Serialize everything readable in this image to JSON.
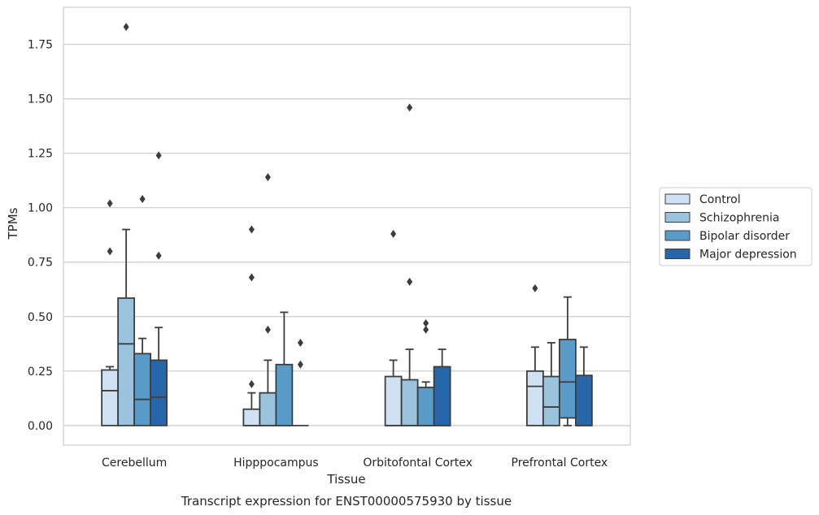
{
  "chart_data": {
    "type": "box",
    "title": "Transcript expression for ENST00000575930 by tissue",
    "xlabel": "Tissue",
    "ylabel": "TPMs",
    "ylim": [
      -0.09,
      1.92
    ],
    "yticks": [
      "0.00",
      "0.25",
      "0.50",
      "0.75",
      "1.00",
      "1.25",
      "1.50",
      "1.75"
    ],
    "grid": "horizontal",
    "legend_position": "right",
    "categories": [
      "Cerebellum",
      "Hipppocampus",
      "Orbitofontal Cortex",
      "Prefrontal Cortex"
    ],
    "series": [
      {
        "name": "Control",
        "color": "#cfe1f2",
        "boxes": [
          {
            "min": 0.0,
            "q1": 0.0,
            "median": 0.16,
            "q3": 0.255,
            "max": 0.27,
            "outliers": [
              0.8,
              1.02
            ]
          },
          {
            "min": 0.0,
            "q1": 0.0,
            "median": 0.0,
            "q3": 0.075,
            "max": 0.15,
            "outliers": [
              0.19,
              0.68,
              0.9
            ]
          },
          {
            "min": 0.0,
            "q1": 0.0,
            "median": 0.0,
            "q3": 0.225,
            "max": 0.3,
            "outliers": [
              0.88
            ]
          },
          {
            "min": 0.0,
            "q1": 0.0,
            "median": 0.18,
            "q3": 0.25,
            "max": 0.36,
            "outliers": [
              0.63
            ]
          }
        ]
      },
      {
        "name": "Schizophrenia",
        "color": "#9ac3dd",
        "boxes": [
          {
            "min": 0.0,
            "q1": 0.0,
            "median": 0.375,
            "q3": 0.585,
            "max": 0.9,
            "outliers": [
              1.83
            ]
          },
          {
            "min": 0.0,
            "q1": 0.0,
            "median": 0.0,
            "q3": 0.15,
            "max": 0.3,
            "outliers": [
              0.44,
              1.14
            ]
          },
          {
            "min": 0.0,
            "q1": 0.0,
            "median": 0.0,
            "q3": 0.21,
            "max": 0.35,
            "outliers": [
              0.66,
              1.46
            ]
          },
          {
            "min": 0.0,
            "q1": 0.0,
            "median": 0.085,
            "q3": 0.225,
            "max": 0.38,
            "outliers": []
          }
        ]
      },
      {
        "name": "Bipolar disorder",
        "color": "#5a9cc9",
        "boxes": [
          {
            "min": 0.0,
            "q1": 0.0,
            "median": 0.12,
            "q3": 0.33,
            "max": 0.4,
            "outliers": [
              1.04
            ]
          },
          {
            "min": 0.0,
            "q1": 0.0,
            "median": 0.0,
            "q3": 0.28,
            "max": 0.52,
            "outliers": []
          },
          {
            "min": 0.0,
            "q1": 0.0,
            "median": 0.0,
            "q3": 0.175,
            "max": 0.2,
            "outliers": [
              0.44,
              0.47
            ]
          },
          {
            "min": 0.0,
            "q1": 0.035,
            "median": 0.2,
            "q3": 0.395,
            "max": 0.59,
            "outliers": []
          }
        ]
      },
      {
        "name": "Major depression",
        "color": "#2767a9",
        "boxes": [
          {
            "min": 0.0,
            "q1": 0.0,
            "median": 0.13,
            "q3": 0.3,
            "max": 0.45,
            "outliers": [
              0.78,
              1.24
            ]
          },
          {
            "min": 0.0,
            "q1": 0.0,
            "median": 0.0,
            "q3": 0.0,
            "max": 0.0,
            "outliers": [
              0.28,
              0.38
            ]
          },
          {
            "min": 0.0,
            "q1": 0.0,
            "median": 0.0,
            "q3": 0.27,
            "max": 0.35,
            "outliers": []
          },
          {
            "min": 0.0,
            "q1": 0.0,
            "median": 0.0,
            "q3": 0.23,
            "max": 0.36,
            "outliers": []
          }
        ]
      }
    ]
  }
}
